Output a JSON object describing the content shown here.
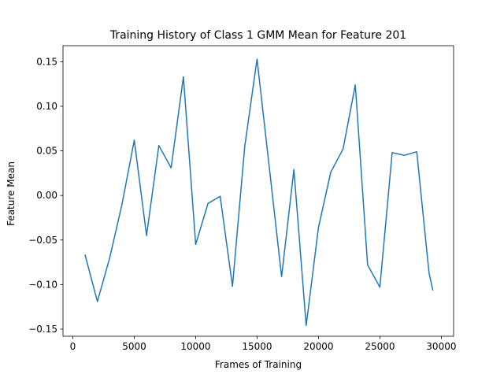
{
  "chart_data": {
    "type": "line",
    "title": "Training History of Class 1 GMM Mean for Feature 201",
    "xlabel": "Frames of Training",
    "ylabel": "Feature Mean",
    "xlim": [
      -800,
      31000
    ],
    "ylim": [
      -0.158,
      0.168
    ],
    "xticks": [
      0,
      5000,
      10000,
      15000,
      20000,
      25000,
      30000
    ],
    "xtick_labels": [
      "0",
      "5000",
      "10000",
      "15000",
      "20000",
      "25000",
      "30000"
    ],
    "yticks": [
      -0.15,
      -0.1,
      -0.05,
      0.0,
      0.05,
      0.1,
      0.15
    ],
    "ytick_labels": [
      "−0.15",
      "−0.10",
      "−0.05",
      "0.00",
      "0.05",
      "0.10",
      "0.15"
    ],
    "grid": false,
    "line_color": "#1f77b4",
    "series": [
      {
        "x": [
          1000,
          2000,
          3000,
          4000,
          5000,
          6000,
          7000,
          8000,
          9000,
          10000,
          11000,
          12000,
          13000,
          14000,
          15000,
          16000,
          17000,
          18000,
          19000,
          20000,
          21000,
          22000,
          23000,
          24000,
          25000,
          26000,
          27000,
          28000,
          29000,
          29300
        ],
        "y": [
          -0.067,
          -0.119,
          -0.07,
          -0.01,
          0.062,
          -0.045,
          0.056,
          0.031,
          0.133,
          -0.055,
          -0.009,
          -0.001,
          -0.102,
          0.055,
          0.153,
          0.031,
          -0.091,
          0.029,
          -0.146,
          -0.036,
          0.026,
          0.052,
          0.124,
          -0.078,
          -0.103,
          0.048,
          0.045,
          0.049,
          -0.087,
          -0.106
        ]
      }
    ]
  }
}
